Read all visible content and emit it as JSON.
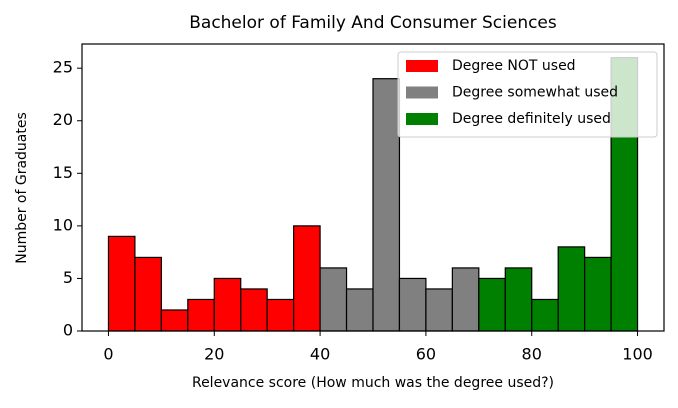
{
  "chart_data": {
    "type": "histogram",
    "title": "Bachelor of Family And Consumer Sciences",
    "xlabel": "Relevance score (How much was the degree used?)",
    "ylabel": "Number of Graduates",
    "series": [
      {
        "name": "Degree NOT used",
        "color": "#ff0000",
        "bins": [
          0,
          5,
          10,
          15,
          20,
          25,
          30,
          35,
          40
        ],
        "values": [
          9,
          7,
          2,
          3,
          5,
          4,
          3,
          10
        ]
      },
      {
        "name": "Degree somewhat used",
        "color": "#808080",
        "bins": [
          40,
          45,
          50,
          55,
          60,
          65,
          70
        ],
        "values": [
          6,
          4,
          24,
          5,
          4,
          6
        ]
      },
      {
        "name": "Degree definitely used",
        "color": "#008000",
        "bins": [
          70,
          75,
          80,
          85,
          90,
          95,
          100
        ],
        "values": [
          5,
          6,
          3,
          8,
          7,
          26
        ]
      }
    ],
    "xlim": [
      -5,
      105
    ],
    "ylim": [
      0,
      27.3
    ],
    "xticks": [
      0,
      20,
      40,
      60,
      80,
      100
    ],
    "yticks": [
      0,
      5,
      10,
      15,
      20,
      25
    ],
    "grid": false,
    "legend": "upper right"
  }
}
